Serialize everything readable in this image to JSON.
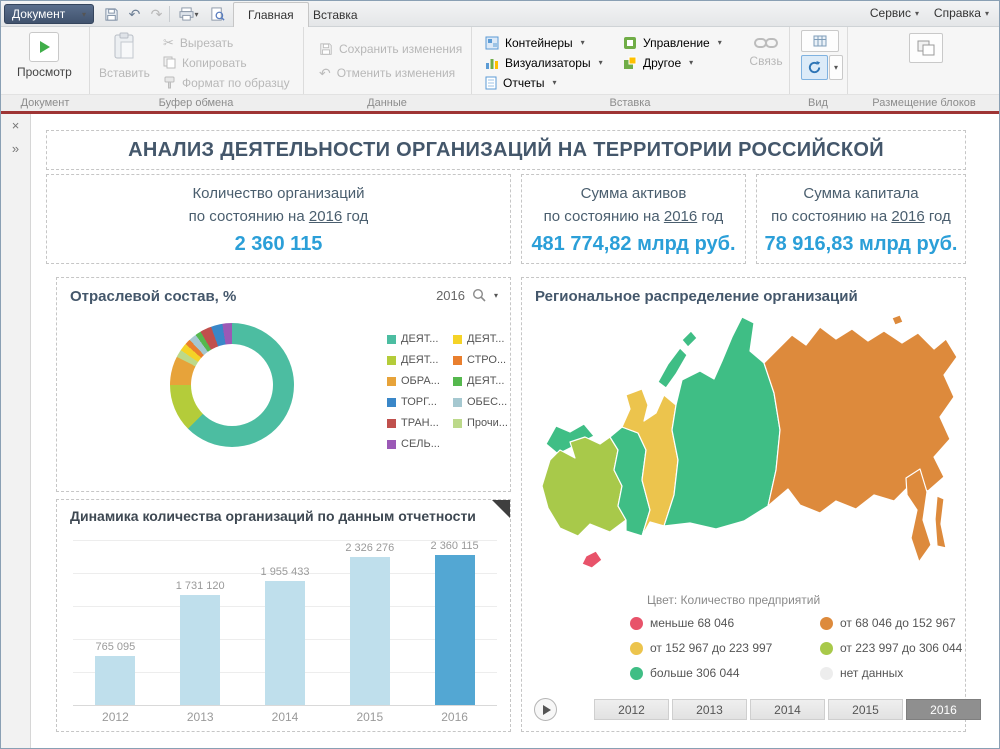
{
  "window": {
    "document_button": "Документ",
    "tabs": [
      {
        "label": "Главная",
        "active": true
      },
      {
        "label": "Вставка",
        "active": false
      }
    ],
    "right_menus": [
      {
        "label": "Сервис"
      },
      {
        "label": "Справка"
      }
    ]
  },
  "sidebar": {
    "close": "×",
    "collapse": "»"
  },
  "ribbon": {
    "document": {
      "group_label": "Документ",
      "preview": "Просмотр"
    },
    "clipboard": {
      "group_label": "Буфер обмена",
      "paste": "Вставить",
      "cut": "Вырезать",
      "copy": "Копировать",
      "format_painter": "Формат по образцу"
    },
    "data": {
      "group_label": "Данные",
      "save_changes": "Сохранить изменения",
      "cancel_changes": "Отменить изменения"
    },
    "insert": {
      "group_label": "Вставка",
      "containers": "Контейнеры",
      "visualizers": "Визуализаторы",
      "reports": "Отчеты",
      "management": "Управление",
      "other": "Другое",
      "link": "Связь"
    },
    "view": {
      "group_label": "Вид"
    },
    "layout": {
      "group_label": "Размещение блоков"
    }
  },
  "dashboard": {
    "title": "АНАЛИЗ ДЕЯТЕЛЬНОСТИ ОРГАНИЗАЦИЙ НА ТЕРРИТОРИИ РОССИЙСКОЙ",
    "kpis": [
      {
        "title": "Количество организаций",
        "prefix": "по состоянию на",
        "year": "2016",
        "suffix": "год",
        "value": "2 360 115"
      },
      {
        "title": "Сумма активов",
        "prefix": "по состоянию на",
        "year": "2016",
        "suffix": "год",
        "value": "481 774,82 млрд руб."
      },
      {
        "title": "Сумма капитала",
        "prefix": "по состоянию на",
        "year": "2016",
        "suffix": "год",
        "value": "78 916,83 млрд руб."
      }
    ],
    "map": {
      "title": "Региональное распределение организаций",
      "legend_title": "Цвет: Количество предприятий",
      "legend": [
        {
          "label": "меньше 68 046",
          "color": "#e8536a"
        },
        {
          "label": "от 68 046 до 152 967",
          "color": "#dd8a3c"
        },
        {
          "label": "от 152 967 до 223 997",
          "color": "#ecc44d"
        },
        {
          "label": "от 223 997 до 306 044",
          "color": "#a8c94a"
        },
        {
          "label": "больше 306 044",
          "color": "#3fbe85"
        },
        {
          "label": "нет данных",
          "color": "#ededed"
        }
      ],
      "years": [
        {
          "label": "2012",
          "selected": false
        },
        {
          "label": "2013",
          "selected": false
        },
        {
          "label": "2014",
          "selected": false
        },
        {
          "label": "2015",
          "selected": false
        },
        {
          "label": "2016",
          "selected": true
        }
      ]
    }
  },
  "chart_data": [
    {
      "type": "pie",
      "donut": true,
      "title": "Отраслевой состав, %",
      "year": "2016",
      "segments": [
        {
          "color": "#4cbda1",
          "value": 62.5
        },
        {
          "color": "#b4cc3a",
          "value": 12.5
        },
        {
          "color": "#e7a33a",
          "value": 7.5
        },
        {
          "color": "#bcd98a",
          "value": 2
        },
        {
          "color": "#f5d327",
          "value": 2
        },
        {
          "color": "#e97f2e",
          "value": 1.5
        },
        {
          "color": "#a5c8d0",
          "value": 2
        },
        {
          "color": "#55b84e",
          "value": 1.5
        },
        {
          "color": "#c0504d",
          "value": 3
        },
        {
          "color": "#3a87c8",
          "value": 3
        },
        {
          "color": "#9b59b6",
          "value": 2.5
        }
      ],
      "legend_columns": [
        [
          {
            "label": "ДЕЯТ...",
            "color": "#4cbda1"
          },
          {
            "label": "ДЕЯТ...",
            "color": "#b4cc3a"
          },
          {
            "label": "ОБРА...",
            "color": "#e7a33a"
          },
          {
            "label": "ТОРГ...",
            "color": "#3a87c8"
          },
          {
            "label": "ТРАН...",
            "color": "#c0504d"
          },
          {
            "label": "СЕЛЬ...",
            "color": "#9b59b6"
          }
        ],
        [
          {
            "label": "ДЕЯТ...",
            "color": "#f5d327"
          },
          {
            "label": "СТРО...",
            "color": "#e97f2e"
          },
          {
            "label": "ДЕЯТ...",
            "color": "#55b84e"
          },
          {
            "label": "ОБЕС...",
            "color": "#a5c8d0"
          },
          {
            "label": "Прочи...",
            "color": "#bcd98a"
          }
        ]
      ]
    },
    {
      "type": "bar",
      "title": "Динамика количества организаций по данным отчетности",
      "categories": [
        "2012",
        "2013",
        "2014",
        "2015",
        "2016"
      ],
      "values": [
        765095,
        1731120,
        1955433,
        2326276,
        2360115
      ],
      "value_labels": [
        "765 095",
        "1 731 120",
        "1 955 433",
        "2 326 276",
        "2 360 115"
      ],
      "ylim": [
        0,
        2360115
      ],
      "bar_color": "#bfdfec",
      "highlight_color": "#53a7d3",
      "highlight_index": 4
    }
  ]
}
